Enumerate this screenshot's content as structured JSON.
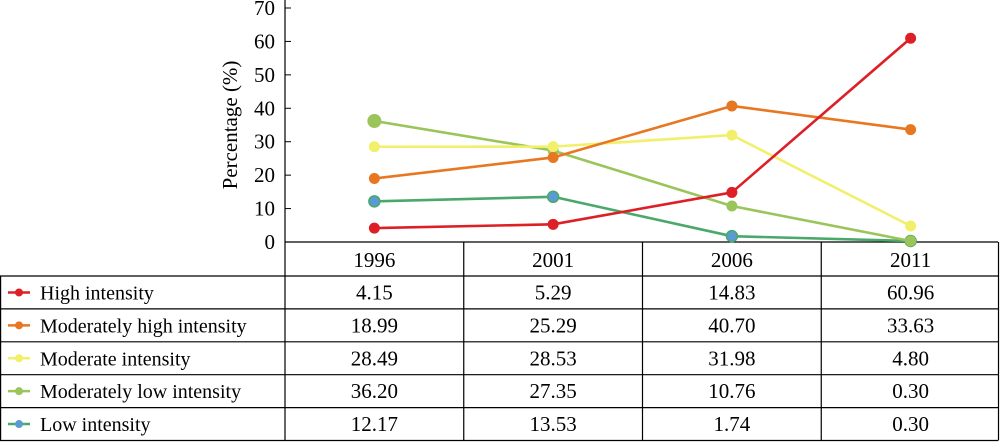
{
  "chart_data": {
    "type": "line",
    "ylabel": "Percentage (%)",
    "ylim": [
      0,
      70
    ],
    "yticks": [
      "0",
      "10",
      "20",
      "30",
      "40",
      "50",
      "60",
      "70"
    ],
    "yticks_values": [
      0,
      10,
      20,
      30,
      40,
      50,
      60,
      70
    ],
    "categories": [
      "1996",
      "2001",
      "2006",
      "2011"
    ],
    "grid": false,
    "legend": "data-table",
    "series": [
      {
        "name": "High intensity",
        "color": "#dd1f26",
        "values": [
          4.15,
          5.29,
          14.83,
          60.96
        ],
        "labels": [
          "4.15",
          "5.29",
          "14.83",
          "60.96"
        ]
      },
      {
        "name": "Moderately high intensity",
        "color": "#e87722",
        "values": [
          18.99,
          25.29,
          40.7,
          33.63
        ],
        "labels": [
          "18.99",
          "25.29",
          "40.70",
          "33.63"
        ]
      },
      {
        "name": "Moderate intensity",
        "color": "#f2f06a",
        "values": [
          28.49,
          28.53,
          31.98,
          4.8
        ],
        "labels": [
          "28.49",
          "28.53",
          "31.98",
          "4.80"
        ]
      },
      {
        "name": "Moderately low intensity",
        "color": "#9bc55a",
        "values": [
          36.2,
          27.35,
          10.76,
          0.3
        ],
        "labels": [
          "36.20",
          "27.35",
          "10.76",
          "0.30"
        ]
      },
      {
        "name": "Low intensity",
        "color": "#4aa86a",
        "marker_color": "#5b9bd5",
        "values": [
          12.17,
          13.53,
          1.74,
          0.3
        ],
        "labels": [
          "12.17",
          "13.53",
          "1.74",
          "0.30"
        ]
      }
    ]
  }
}
